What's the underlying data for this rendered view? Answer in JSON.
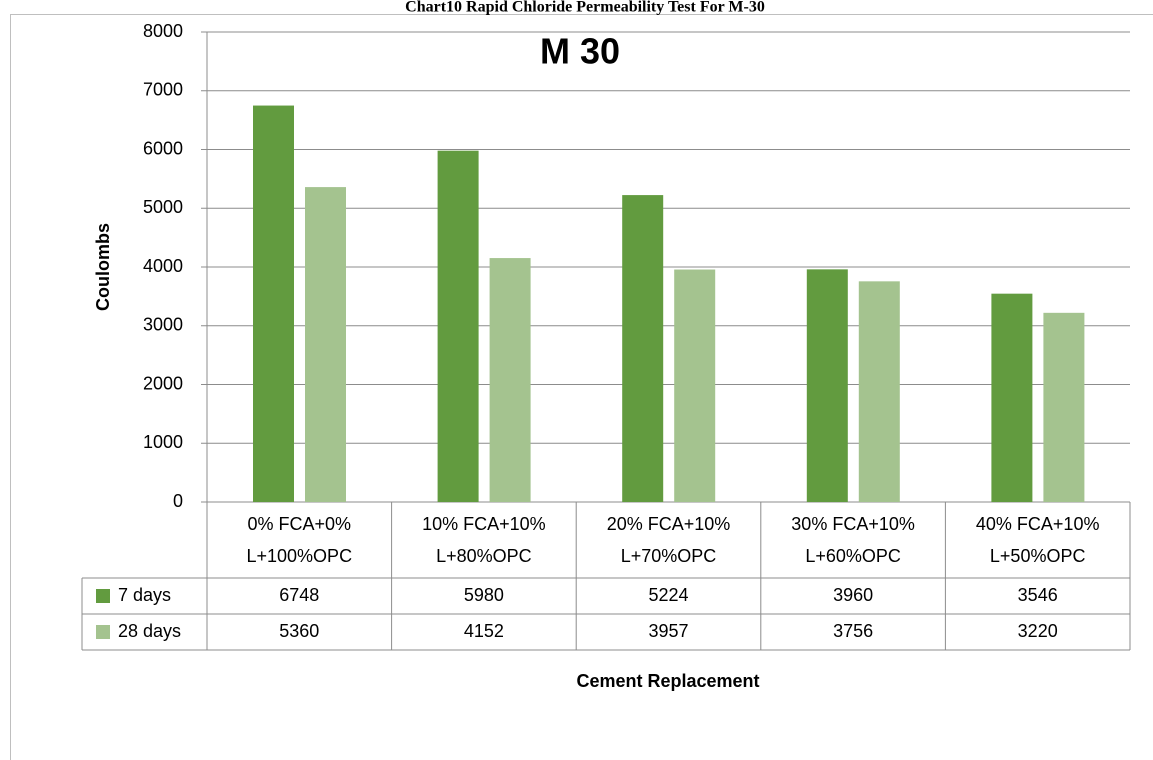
{
  "chart_data": {
    "type": "bar",
    "caption": "Chart10 Rapid Chloride Permeability Test For M-30",
    "title": "M 30",
    "y_label": "Coulombs",
    "x_label": "Cement Replacement",
    "categories": [
      "0% FCA+0% L+100%OPC",
      "10% FCA+10% L+80%OPC",
      "20% FCA+10% L+70%OPC",
      "30% FCA+10% L+60%OPC",
      "40% FCA+10% L+50%OPC"
    ],
    "series": [
      {
        "name": "7 days",
        "color": "#629b3f",
        "values": [
          6748,
          5980,
          5224,
          3960,
          3546
        ]
      },
      {
        "name": "28 days",
        "color": "#a4c38f",
        "values": [
          5360,
          4152,
          3957,
          3756,
          3220
        ]
      }
    ],
    "ylim": [
      0,
      8000
    ],
    "yticks": [
      0,
      1000,
      2000,
      3000,
      4000,
      5000,
      6000,
      7000,
      8000
    ],
    "grid": true
  }
}
